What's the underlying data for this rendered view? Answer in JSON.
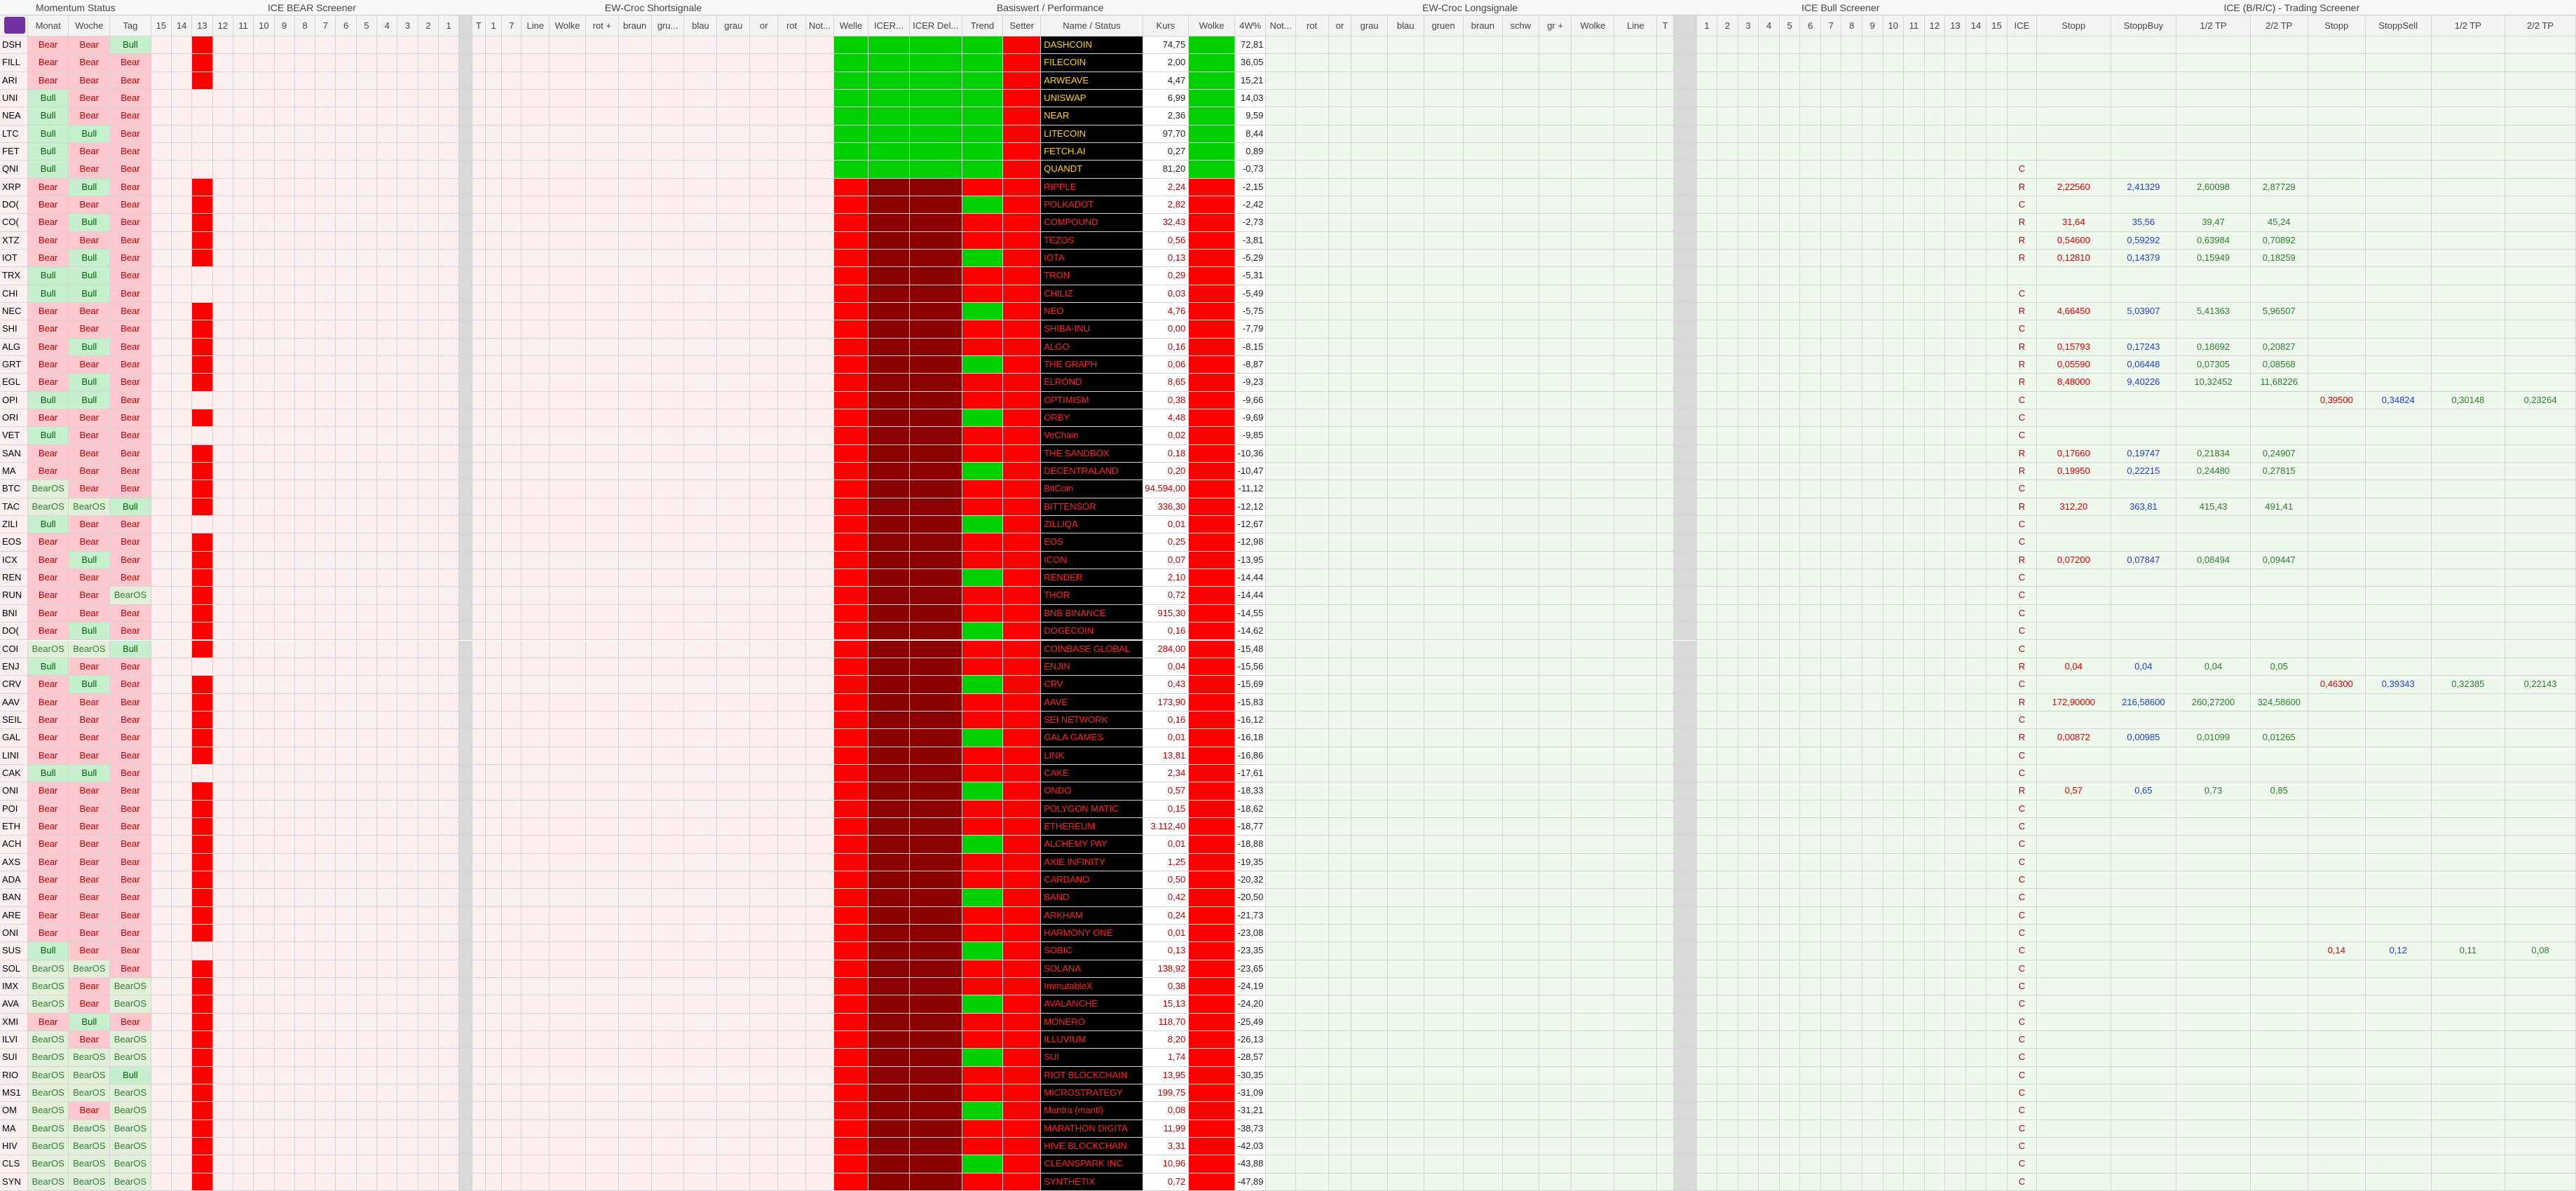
{
  "header_groups": [
    "Momentum Status",
    "ICE BEAR Screener",
    "EW-Croc Shortsignale",
    "Basiswert / Performance",
    "EW-Croc Longsignale",
    "ICE Bull Screener",
    "ICE (B/R/C) - Trading Screener"
  ],
  "columns": [
    null,
    "Monat",
    "Woche",
    "Tag",
    "15",
    "14",
    "13",
    "12",
    "11",
    "10",
    "9",
    "8",
    "7",
    "6",
    "5",
    "4",
    "3",
    "2",
    "1",
    null,
    "T",
    "1",
    "7",
    "Line",
    "Wolke",
    "rot +",
    "braun",
    "gru...",
    "blau",
    "grau",
    "or",
    "rot",
    "Not...",
    "Welle",
    "ICER...",
    "ICER Del...",
    "Trend",
    "Setter",
    "Name / Status",
    "Kurs",
    "Wolke",
    "4W%",
    "Not...",
    "rot",
    "or",
    "grau",
    "blau",
    "gruen",
    "braun",
    "schw",
    "gr +",
    "Wolke",
    "Line",
    "T",
    null,
    "1",
    "2",
    "3",
    "4",
    "5",
    "6",
    "7",
    "8",
    "9",
    "10",
    "11",
    "12",
    "13",
    "14",
    "15",
    "ICE",
    "Stopp",
    "StoppBuy",
    "1/2 TP",
    "2/2 TP",
    "Stopp",
    "StoppSell",
    "1/2 TP",
    "2/2 TP"
  ],
  "rows": [
    {
      "ticker": "DSH",
      "monat": "Bear",
      "woche": "Bear",
      "tag": "Bull",
      "name": "DASHCOIN",
      "kurs": "74,75",
      "change": "72,81"
    },
    {
      "ticker": "FILL",
      "monat": "Bear",
      "woche": "Bear",
      "tag": "Bear",
      "name": "FILECOIN",
      "kurs": "2,00",
      "change": "36,05"
    },
    {
      "ticker": "ARI",
      "monat": "Bear",
      "woche": "Bear",
      "tag": "Bear",
      "name": "ARWEAVE",
      "kurs": "4,47",
      "change": "15,21"
    },
    {
      "ticker": "UNI",
      "monat": "Bull",
      "woche": "Bear",
      "tag": "Bear",
      "name": "UNISWAP",
      "kurs": "6,99",
      "change": "14,03"
    },
    {
      "ticker": "NEA",
      "monat": "Bull",
      "woche": "Bear",
      "tag": "Bear",
      "name": "NEAR",
      "kurs": "2,36",
      "change": "9,59"
    },
    {
      "ticker": "LTC",
      "monat": "Bull",
      "woche": "Bull",
      "tag": "Bear",
      "name": "LITECOIN",
      "kurs": "97,70",
      "change": "8,44"
    },
    {
      "ticker": "FET",
      "monat": "Bull",
      "woche": "Bear",
      "tag": "Bear",
      "name": "FETCH.AI",
      "kurs": "0,27",
      "change": "0,89"
    },
    {
      "ticker": "QNI",
      "monat": "Bull",
      "woche": "Bear",
      "tag": "Bear",
      "name": "QUANDT",
      "kurs": "81,20",
      "change": "-0,73",
      "ice": "C"
    },
    {
      "ticker": "XRP",
      "monat": "Bear",
      "woche": "Bull",
      "tag": "Bear",
      "name": "RIPPLE",
      "kurs": "2,24",
      "change": "-2,15",
      "ice": "R",
      "long": [
        "2,22560",
        "2,41329",
        "2,60098",
        "2,87729"
      ]
    },
    {
      "ticker": "DO(",
      "monat": "Bear",
      "woche": "Bear",
      "tag": "Bear",
      "name": "POLKADOT",
      "kurs": "2,82",
      "change": "-2,42",
      "ice": "C"
    },
    {
      "ticker": "CO(",
      "monat": "Bear",
      "woche": "Bull",
      "tag": "Bear",
      "name": "COMPOUND",
      "kurs": "32,43",
      "change": "-2,73",
      "ice": "R",
      "long": [
        "31,64",
        "35,56",
        "39,47",
        "45,24"
      ]
    },
    {
      "ticker": "XTZ",
      "monat": "Bear",
      "woche": "Bear",
      "tag": "Bear",
      "name": "TEZOS",
      "kurs": "0,56",
      "change": "-3,81",
      "ice": "R",
      "long": [
        "0,54600",
        "0,59292",
        "0,63984",
        "0,70892"
      ]
    },
    {
      "ticker": "IOT",
      "monat": "Bear",
      "woche": "Bull",
      "tag": "Bear",
      "name": "IOTA",
      "kurs": "0,13",
      "change": "-5,29",
      "ice": "R",
      "long": [
        "0,12810",
        "0,14379",
        "0,15949",
        "0,18259"
      ]
    },
    {
      "ticker": "TRX",
      "monat": "Bull",
      "woche": "Bull",
      "tag": "Bear",
      "name": "TRON",
      "kurs": "0,29",
      "change": "-5,31"
    },
    {
      "ticker": "CHI",
      "monat": "Bull",
      "woche": "Bull",
      "tag": "Bear",
      "name": "CHILIZ",
      "kurs": "0,03",
      "change": "-5,49",
      "ice": "C"
    },
    {
      "ticker": "NEC",
      "monat": "Bear",
      "woche": "Bear",
      "tag": "Bear",
      "name": "NEO",
      "kurs": "4,76",
      "change": "-5,75",
      "ice": "R",
      "long": [
        "4,66450",
        "5,03907",
        "5,41363",
        "5,96507"
      ]
    },
    {
      "ticker": "SHI",
      "monat": "Bear",
      "woche": "Bear",
      "tag": "Bear",
      "name": "SHIBA-INU",
      "kurs": "0,00",
      "change": "-7,79",
      "ice": "C"
    },
    {
      "ticker": "ALG",
      "monat": "Bear",
      "woche": "Bull",
      "tag": "Bear",
      "name": "ALGO",
      "kurs": "0,16",
      "change": "-8,15",
      "ice": "R",
      "long": [
        "0,15793",
        "0,17243",
        "0,18692",
        "0,20827"
      ]
    },
    {
      "ticker": "GRT",
      "monat": "Bear",
      "woche": "Bear",
      "tag": "Bear",
      "name": "THE GRAPH",
      "kurs": "0,06",
      "change": "-8,87",
      "ice": "R",
      "long": [
        "0,05590",
        "0,06448",
        "0,07305",
        "0,08568"
      ]
    },
    {
      "ticker": "EGL",
      "monat": "Bear",
      "woche": "Bull",
      "tag": "Bear",
      "name": "ELROND",
      "kurs": "8,65",
      "change": "-9,23",
      "ice": "R",
      "long": [
        "8,48000",
        "9,40226",
        "10,32452",
        "11,68226"
      ]
    },
    {
      "ticker": "OPI",
      "monat": "Bull",
      "woche": "Bull",
      "tag": "Bear",
      "name": "OPTIMISM",
      "kurs": "0,38",
      "change": "-9,66",
      "ice": "C",
      "short": [
        "0,39500",
        "0,34824",
        "0,30148",
        "0,23264"
      ]
    },
    {
      "ticker": "ORI",
      "monat": "Bear",
      "woche": "Bear",
      "tag": "Bear",
      "name": "ORBY",
      "kurs": "4,48",
      "change": "-9,69",
      "ice": "C"
    },
    {
      "ticker": "VET",
      "monat": "Bull",
      "woche": "Bear",
      "tag": "Bear",
      "name": "VeChain",
      "kurs": "0,02",
      "change": "-9,85",
      "ice": "C"
    },
    {
      "ticker": "SAN",
      "monat": "Bear",
      "woche": "Bear",
      "tag": "Bear",
      "name": "THE SANDBOX",
      "kurs": "0,18",
      "change": "-10,36",
      "ice": "R",
      "long": [
        "0,17660",
        "0,19747",
        "0,21834",
        "0,24907"
      ]
    },
    {
      "ticker": "MA",
      "monat": "Bear",
      "woche": "Bear",
      "tag": "Bear",
      "name": "DECENTRALAND",
      "kurs": "0,20",
      "change": "-10,47",
      "ice": "R",
      "long": [
        "0,19950",
        "0,22215",
        "0,24480",
        "0,27815"
      ]
    },
    {
      "ticker": "BTC",
      "monat": "BearOS",
      "woche": "Bear",
      "tag": "Bear",
      "name": "BitCoin",
      "kurs": "94.594,00",
      "change": "-11,12",
      "ice": "C"
    },
    {
      "ticker": "TAC",
      "monat": "BearOS",
      "woche": "BearOS",
      "tag": "Bull",
      "name": "BITTENSOR",
      "kurs": "336,30",
      "change": "-12,12",
      "ice": "R",
      "long": [
        "312,20",
        "363,81",
        "415,43",
        "491,41"
      ]
    },
    {
      "ticker": "ZILI",
      "monat": "Bull",
      "woche": "Bear",
      "tag": "Bear",
      "name": "ZILLIQA",
      "kurs": "0,01",
      "change": "-12,67",
      "ice": "C"
    },
    {
      "ticker": "EOS",
      "monat": "Bear",
      "woche": "Bear",
      "tag": "Bear",
      "name": "EOS",
      "kurs": "0,25",
      "change": "-12,98",
      "ice": "C"
    },
    {
      "ticker": "ICX",
      "monat": "Bear",
      "woche": "Bull",
      "tag": "Bear",
      "name": "ICON",
      "kurs": "0,07",
      "change": "-13,95",
      "ice": "R",
      "long": [
        "0,07200",
        "0,07847",
        "0,08494",
        "0,09447"
      ]
    },
    {
      "ticker": "REN",
      "monat": "Bear",
      "woche": "Bear",
      "tag": "Bear",
      "name": "RENDER",
      "kurs": "2,10",
      "change": "-14,44",
      "ice": "C"
    },
    {
      "ticker": "RUN",
      "monat": "Bear",
      "woche": "Bear",
      "tag": "BearOS",
      "name": "THOR",
      "kurs": "0,72",
      "change": "-14,44",
      "ice": "C"
    },
    {
      "ticker": "BNI",
      "monat": "Bear",
      "woche": "Bear",
      "tag": "Bear",
      "name": "BNB BINANCE",
      "kurs": "915,30",
      "change": "-14,55",
      "ice": "C"
    },
    {
      "ticker": "DO(",
      "monat": "Bear",
      "woche": "Bull",
      "tag": "Bear",
      "name": "DOGECOIN",
      "kurs": "0,16",
      "change": "-14,62",
      "ice": "C"
    },
    {
      "ticker": "COI",
      "monat": "BearOS",
      "woche": "BearOS",
      "tag": "Bull",
      "name": "COINBASE GLOBAL",
      "kurs": "284,00",
      "change": "-15,48",
      "ice": "C"
    },
    {
      "ticker": "ENJ",
      "monat": "Bull",
      "woche": "Bear",
      "tag": "Bear",
      "name": "ENJIN",
      "kurs": "0,04",
      "change": "-15,56",
      "ice": "R",
      "long": [
        "0,04",
        "0,04",
        "0,04",
        "0,05"
      ]
    },
    {
      "ticker": "CRV",
      "monat": "Bear",
      "woche": "Bull",
      "tag": "Bear",
      "name": "CRV",
      "kurs": "0,43",
      "change": "-15,69",
      "ice": "C",
      "short": [
        "0,46300",
        "0,39343",
        "0,32385",
        "0,22143"
      ]
    },
    {
      "ticker": "AAV",
      "monat": "Bear",
      "woche": "Bear",
      "tag": "Bear",
      "name": "AAVE",
      "kurs": "173,90",
      "change": "-15,83",
      "ice": "R",
      "long": [
        "172,90000",
        "216,58600",
        "260,27200",
        "324,58600"
      ]
    },
    {
      "ticker": "SEIL",
      "monat": "Bear",
      "woche": "Bear",
      "tag": "Bear",
      "name": "SEI NETWORK",
      "kurs": "0,16",
      "change": "-16,12",
      "ice": "C"
    },
    {
      "ticker": "GAL",
      "monat": "Bear",
      "woche": "Bear",
      "tag": "Bear",
      "name": "GALA GAMES",
      "kurs": "0,01",
      "change": "-16,18",
      "ice": "R",
      "long": [
        "0,00872",
        "0,00985",
        "0,01099",
        "0,01265"
      ]
    },
    {
      "ticker": "LINI",
      "monat": "Bear",
      "woche": "Bear",
      "tag": "Bear",
      "name": "LINK",
      "kurs": "13,81",
      "change": "-16,86",
      "ice": "C"
    },
    {
      "ticker": "CAK",
      "monat": "Bull",
      "woche": "Bull",
      "tag": "Bear",
      "name": "CAKE",
      "kurs": "2,34",
      "change": "-17,61",
      "ice": "C"
    },
    {
      "ticker": "ONI",
      "monat": "Bear",
      "woche": "Bear",
      "tag": "Bear",
      "name": "ONDO",
      "kurs": "0,57",
      "change": "-18,33",
      "ice": "R",
      "long": [
        "0,57",
        "0,65",
        "0,73",
        "0,85"
      ]
    },
    {
      "ticker": "POI",
      "monat": "Bear",
      "woche": "Bear",
      "tag": "Bear",
      "name": "POLYGON MATIC",
      "kurs": "0,15",
      "change": "-18,62",
      "ice": "C"
    },
    {
      "ticker": "ETH",
      "monat": "Bear",
      "woche": "Bear",
      "tag": "Bear",
      "name": "ETHEREUM",
      "kurs": "3.112,40",
      "change": "-18,77",
      "ice": "C"
    },
    {
      "ticker": "ACH",
      "monat": "Bear",
      "woche": "Bear",
      "tag": "Bear",
      "name": "ALCHEMY PAY",
      "kurs": "0,01",
      "change": "-18,88",
      "ice": "C"
    },
    {
      "ticker": "AXS",
      "monat": "Bear",
      "woche": "Bear",
      "tag": "Bear",
      "name": "AXIE INFINITY",
      "kurs": "1,25",
      "change": "-19,35",
      "ice": "C"
    },
    {
      "ticker": "ADA",
      "monat": "Bear",
      "woche": "Bear",
      "tag": "Bear",
      "name": "CARDANO",
      "kurs": "0,50",
      "change": "-20,32",
      "ice": "C"
    },
    {
      "ticker": "BAN",
      "monat": "Bear",
      "woche": "Bear",
      "tag": "Bear",
      "name": "BAND",
      "kurs": "0,42",
      "change": "-20,50",
      "ice": "C"
    },
    {
      "ticker": "ARE",
      "monat": "Bear",
      "woche": "Bear",
      "tag": "Bear",
      "name": "ARKHAM",
      "kurs": "0,24",
      "change": "-21,73",
      "ice": "C"
    },
    {
      "ticker": "ONI",
      "monat": "Bear",
      "woche": "Bear",
      "tag": "Bear",
      "name": "HARMONY ONE",
      "kurs": "0,01",
      "change": "-23,08",
      "ice": "C"
    },
    {
      "ticker": "SUS",
      "monat": "Bull",
      "woche": "Bear",
      "tag": "Bear",
      "name": "SOBIC",
      "kurs": "0,13",
      "change": "-23,35",
      "ice": "C",
      "short": [
        "0,14",
        "0,12",
        "0,11",
        "0,08"
      ]
    },
    {
      "ticker": "SOL",
      "monat": "BearOS",
      "woche": "BearOS",
      "tag": "Bear",
      "name": "SOLANA",
      "kurs": "138,92",
      "change": "-23,65",
      "ice": "C"
    },
    {
      "ticker": "IMX",
      "monat": "BearOS",
      "woche": "Bear",
      "tag": "BearOS",
      "name": "ImmutableX",
      "kurs": "0,38",
      "change": "-24,19",
      "ice": "C"
    },
    {
      "ticker": "AVA",
      "monat": "BearOS",
      "woche": "Bear",
      "tag": "BearOS",
      "name": "AVALANCHE",
      "kurs": "15,13",
      "change": "-24,20",
      "ice": "C"
    },
    {
      "ticker": "XMI",
      "monat": "Bear",
      "woche": "Bull",
      "tag": "Bear",
      "name": "MONERO",
      "kurs": "118,70",
      "change": "-25,49",
      "ice": "C"
    },
    {
      "ticker": "ILVI",
      "monat": "BearOS",
      "woche": "Bear",
      "tag": "BearOS",
      "name": "ILLUVIUM",
      "kurs": "8,20",
      "change": "-26,13",
      "ice": "C"
    },
    {
      "ticker": "SUI",
      "monat": "BearOS",
      "woche": "BearOS",
      "tag": "BearOS",
      "name": "SUI",
      "kurs": "1,74",
      "change": "-28,57",
      "ice": "C"
    },
    {
      "ticker": "RIO",
      "monat": "BearOS",
      "woche": "BearOS",
      "tag": "Bull",
      "name": "RIOT BLOCKCHAIN",
      "kurs": "13,95",
      "change": "-30,35",
      "ice": "C"
    },
    {
      "ticker": "MS1",
      "monat": "BearOS",
      "woche": "BearOS",
      "tag": "BearOS",
      "name": "MICROSTRATEGY",
      "kurs": "199,75",
      "change": "-31,09",
      "ice": "C"
    },
    {
      "ticker": "OM",
      "monat": "BearOS",
      "woche": "Bear",
      "tag": "BearOS",
      "name": "Mantra (mantl)",
      "kurs": "0,08",
      "change": "-31,21",
      "ice": "C"
    },
    {
      "ticker": "MA",
      "monat": "BearOS",
      "woche": "BearOS",
      "tag": "BearOS",
      "name": "MARATHON DIGITA",
      "kurs": "11,99",
      "change": "-38,73",
      "ice": "C"
    },
    {
      "ticker": "HIV",
      "monat": "BearOS",
      "woche": "BearOS",
      "tag": "BearOS",
      "name": "HIVE BLOCKCHAIN",
      "kurs": "3,31",
      "change": "-42,03",
      "ice": "C"
    },
    {
      "ticker": "CLS",
      "monat": "BearOS",
      "woche": "BearOS",
      "tag": "BearOS",
      "name": "CLEANSPARK INC",
      "kurs": "10,96",
      "change": "-43,88",
      "ice": "C"
    },
    {
      "ticker": "SYN",
      "monat": "BearOS",
      "woche": "BearOS",
      "tag": "BearOS",
      "name": "SYNTHETIX",
      "kurs": "0,72",
      "change": "-47,89",
      "ice": "C"
    }
  ]
}
